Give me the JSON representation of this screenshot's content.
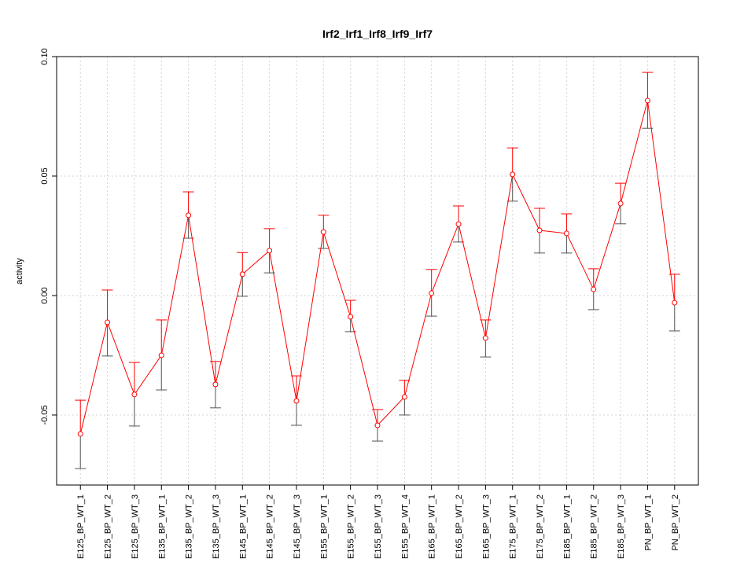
{
  "chart_data": {
    "type": "line",
    "title": "Irf2_Irf1_Irf8_Irf9_Irf7",
    "xlabel": "",
    "ylabel": "activity",
    "ylim": [
      -0.0793,
      0.1
    ],
    "yticks": [
      -0.05,
      0.0,
      0.05,
      0.1
    ],
    "ytick_labels": [
      "-0.05",
      "0.00",
      "0.05",
      "0.10"
    ],
    "grid": true,
    "series_color": "#ff0000",
    "categories": [
      "E125_BP_WT_1",
      "E125_BP_WT_2",
      "E125_BP_WT_3",
      "E135_BP_WT_1",
      "E135_BP_WT_2",
      "E135_BP_WT_3",
      "E145_BP_WT_1",
      "E145_BP_WT_2",
      "E145_BP_WT_3",
      "E155_BP_WT_1",
      "E155_BP_WT_2",
      "E155_BP_WT_3",
      "E155_BP_WT_4",
      "E165_BP_WT_1",
      "E165_BP_WT_2",
      "E165_BP_WT_3",
      "E175_BP_WT_1",
      "E175_BP_WT_2",
      "E185_BP_WT_1",
      "E185_BP_WT_2",
      "E185_BP_WT_3",
      "PN_BP_WT_1",
      "PN_BP_WT_2"
    ],
    "values": [
      -0.0579,
      -0.0112,
      -0.0414,
      -0.025,
      0.0336,
      -0.0372,
      0.0089,
      0.0188,
      -0.0441,
      0.0266,
      -0.0089,
      -0.0543,
      -0.0424,
      0.001,
      0.0299,
      -0.0178,
      0.0507,
      0.0273,
      0.026,
      0.0026,
      0.0385,
      0.0816,
      -0.003
    ],
    "upper": [
      -0.0438,
      0.0023,
      -0.028,
      -0.0102,
      0.0434,
      -0.0276,
      0.018,
      0.028,
      -0.0336,
      0.0336,
      -0.002,
      -0.0477,
      -0.0355,
      0.0109,
      0.0375,
      -0.0102,
      0.0618,
      0.0365,
      0.0342,
      0.0112,
      0.047,
      0.0934,
      0.0089
    ],
    "lower": [
      -0.0724,
      -0.0253,
      -0.0546,
      -0.0395,
      0.024,
      -0.047,
      -0.0003,
      0.0095,
      -0.0543,
      0.0197,
      -0.0151,
      -0.0609,
      -0.05,
      -0.0086,
      0.0224,
      -0.0257,
      0.0395,
      0.0178,
      0.0178,
      -0.0059,
      0.03,
      0.07,
      -0.0148
    ]
  }
}
